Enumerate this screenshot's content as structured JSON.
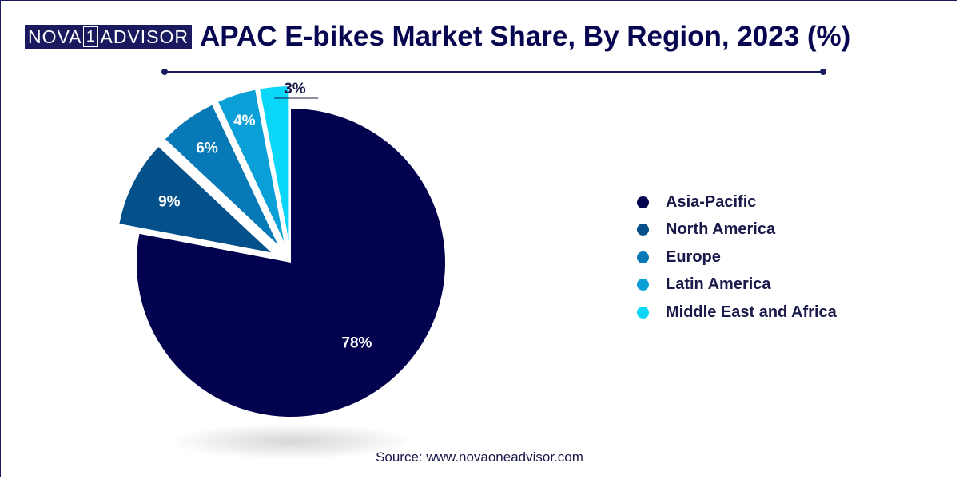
{
  "logo": {
    "left": "NOVA",
    "mid": "1",
    "right": "ADVISOR"
  },
  "title": "APAC E-bikes Market Share, By Region, 2023 (%)",
  "source": "Source: www.novaoneadvisor.com",
  "chart_data": {
    "type": "pie",
    "title": "APAC E-bikes Market Share, By Region, 2023 (%)",
    "legend_position": "right",
    "labels": [
      "Asia-Pacific",
      "North America",
      "Europe",
      "Latin America",
      "Middle East and Africa"
    ],
    "values": [
      78,
      9,
      6,
      4,
      3
    ],
    "value_labels": [
      "78%",
      "9%",
      "6%",
      "4%",
      "3%"
    ],
    "colors": [
      "#02024f",
      "#03508a",
      "#0779b6",
      "#0a9fd6",
      "#0ad7f7"
    ]
  }
}
